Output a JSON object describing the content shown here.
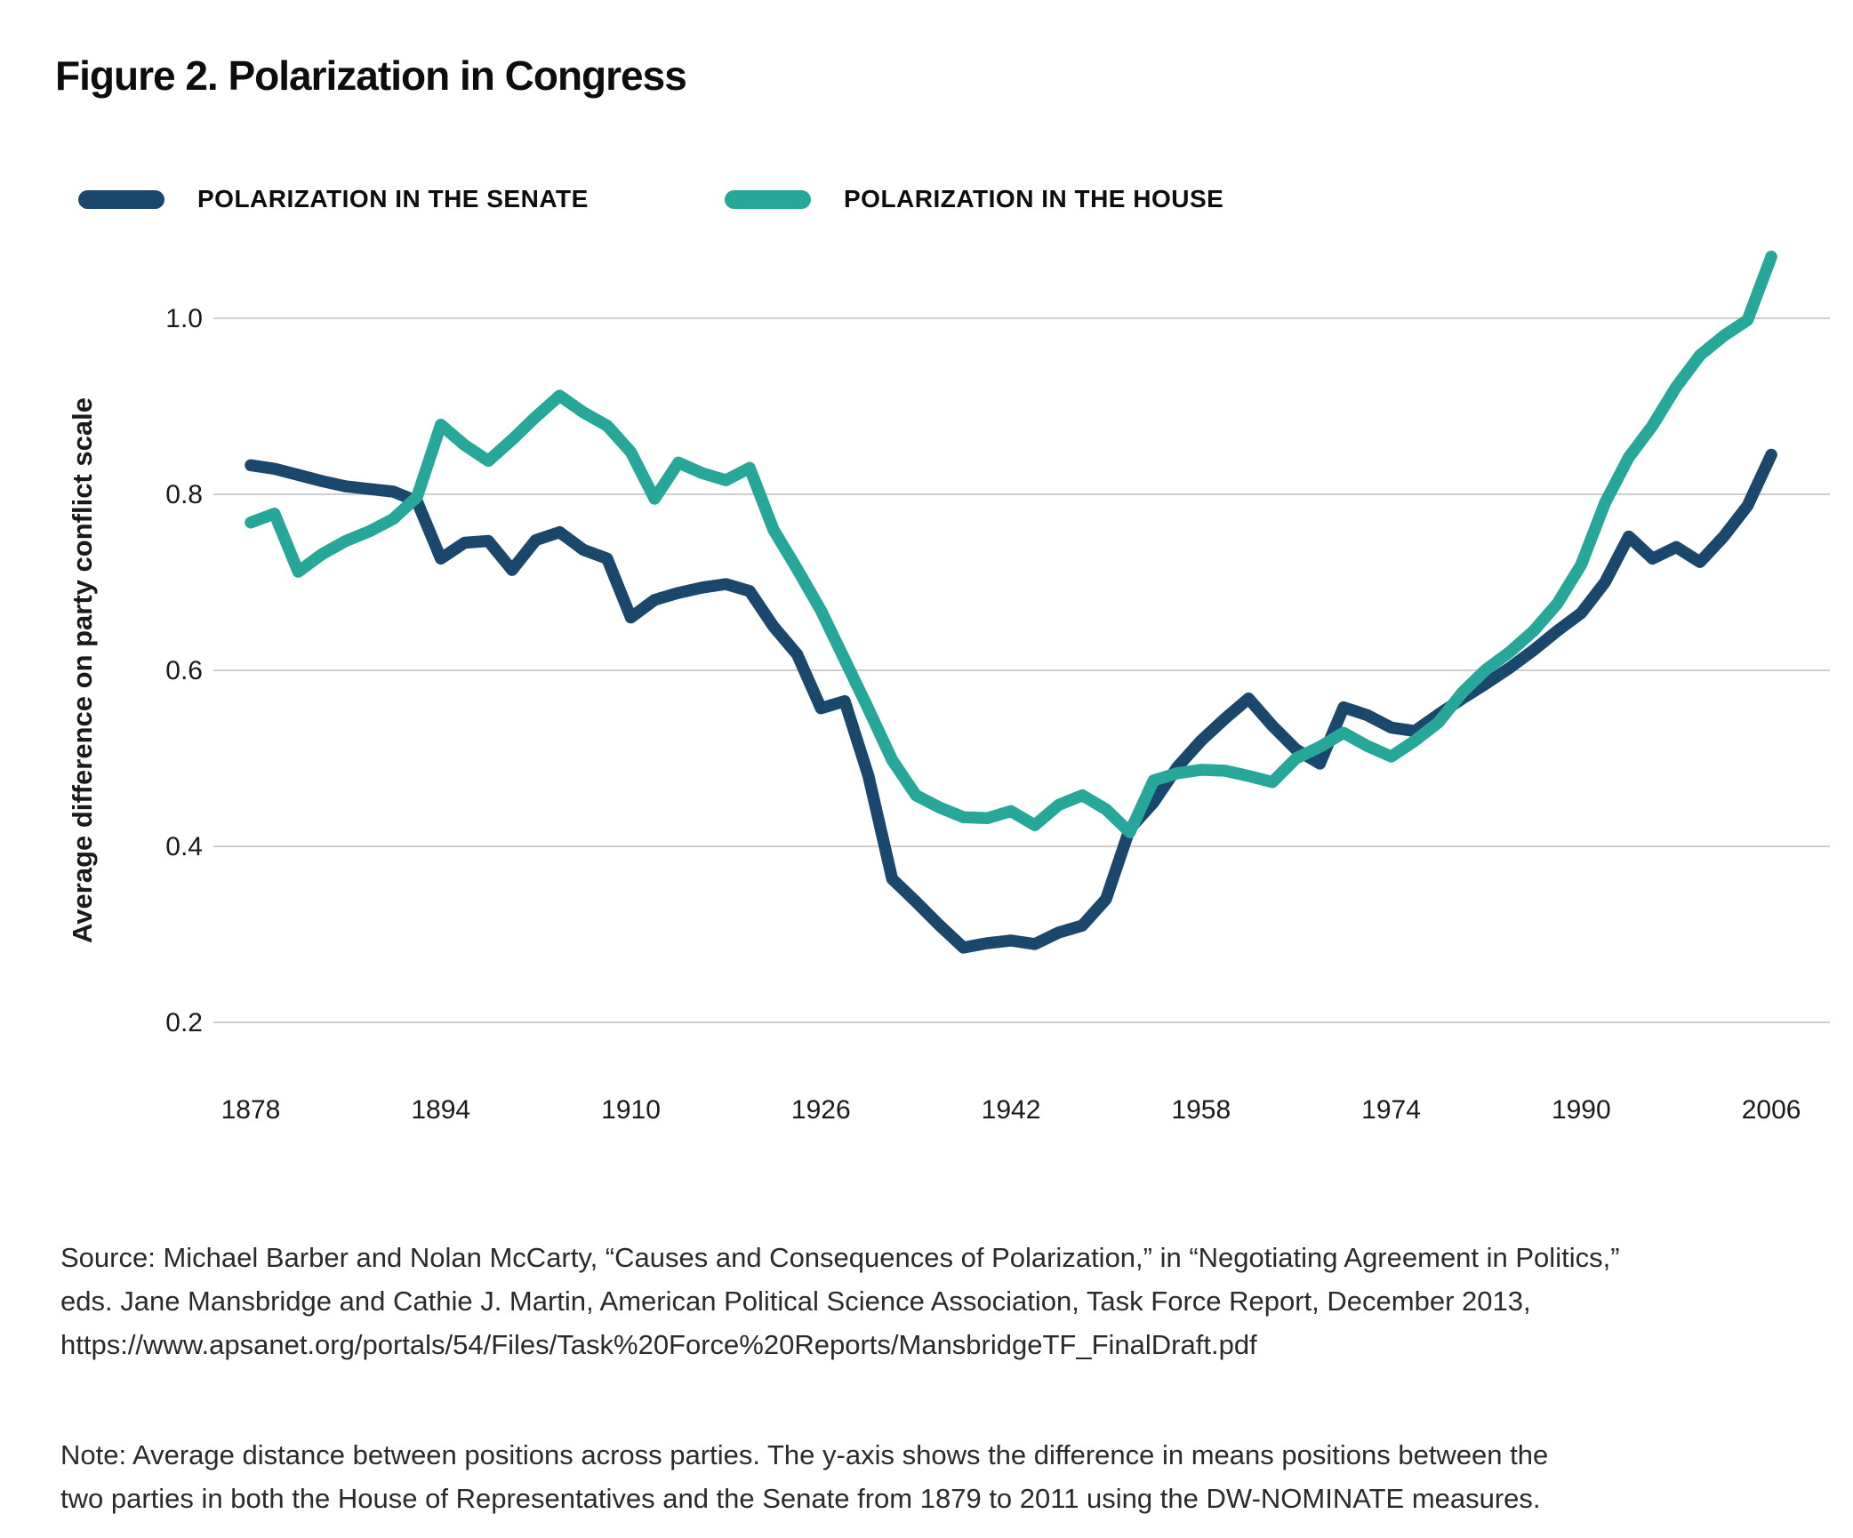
{
  "title": "Figure 2. Polarization in Congress",
  "legend": [
    {
      "id": "senate",
      "label": "POLARIZATION IN THE SENATE",
      "color": "#1A486C"
    },
    {
      "id": "house",
      "label": "POLARIZATION IN THE HOUSE",
      "color": "#27A79A"
    }
  ],
  "chart_data": {
    "type": "line",
    "title": "Figure 2. Polarization in Congress",
    "xlabel": "",
    "ylabel": "Average difference on party conflict scale",
    "ylim": [
      0.2,
      1.1
    ],
    "grid": "horizontal",
    "legend_position": "top",
    "yticks": [
      1.0,
      0.8,
      0.6,
      0.4,
      0.2
    ],
    "ytick_labels": [
      "1.0",
      "0.8",
      "0.6",
      "0.4",
      "0.2"
    ],
    "xticks": [
      {
        "label": "1878",
        "slot": 0
      },
      {
        "label": "1894",
        "slot": 8
      },
      {
        "label": "1910",
        "slot": 16
      },
      {
        "label": "1926",
        "slot": 24
      },
      {
        "label": "1942",
        "slot": 32
      },
      {
        "label": "1958",
        "slot": 40
      },
      {
        "label": "1974",
        "slot": 48
      },
      {
        "label": "1990",
        "slot": 56
      },
      {
        "label": "2006",
        "slot": 64
      }
    ],
    "x": [
      1879,
      1881,
      1883,
      1885,
      1887,
      1889,
      1891,
      1893,
      1895,
      1897,
      1899,
      1901,
      1903,
      1905,
      1907,
      1909,
      1911,
      1913,
      1915,
      1917,
      1919,
      1921,
      1923,
      1925,
      1927,
      1929,
      1931,
      1933,
      1935,
      1937,
      1939,
      1941,
      1943,
      1945,
      1947,
      1949,
      1951,
      1953,
      1955,
      1957,
      1959,
      1961,
      1963,
      1965,
      1967,
      1969,
      1971,
      1973,
      1975,
      1977,
      1979,
      1981,
      1983,
      1985,
      1987,
      1989,
      1991,
      1993,
      1995,
      1997,
      1999,
      2001,
      2003,
      2005,
      2007
    ],
    "series": [
      {
        "id": "senate-line",
        "name": "Polarization in the Senate",
        "color": "#1A486C",
        "values": [
          0.833,
          0.829,
          0.822,
          0.815,
          0.809,
          0.806,
          0.803,
          0.792,
          0.727,
          0.745,
          0.747,
          0.714,
          0.748,
          0.757,
          0.737,
          0.727,
          0.66,
          0.68,
          0.688,
          0.694,
          0.698,
          0.69,
          0.65,
          0.618,
          0.557,
          0.565,
          0.48,
          0.363,
          0.337,
          0.31,
          0.285,
          0.29,
          0.293,
          0.289,
          0.302,
          0.31,
          0.34,
          0.42,
          0.45,
          0.49,
          0.52,
          0.545,
          0.568,
          0.537,
          0.51,
          0.494,
          0.558,
          0.549,
          0.535,
          0.531,
          0.55,
          0.568,
          0.585,
          0.603,
          0.623,
          0.645,
          0.665,
          0.7,
          0.752,
          0.727,
          0.74,
          0.723,
          0.752,
          0.787,
          0.845
        ]
      },
      {
        "id": "house-line",
        "name": "Polarization in the House",
        "color": "#27A79A",
        "values": [
          0.768,
          0.778,
          0.712,
          0.732,
          0.747,
          0.758,
          0.772,
          0.797,
          0.879,
          0.856,
          0.838,
          0.862,
          0.888,
          0.912,
          0.893,
          0.878,
          0.848,
          0.795,
          0.836,
          0.824,
          0.816,
          0.83,
          0.76,
          0.715,
          0.668,
          0.612,
          0.556,
          0.498,
          0.458,
          0.444,
          0.433,
          0.432,
          0.44,
          0.424,
          0.447,
          0.458,
          0.442,
          0.416,
          0.475,
          0.483,
          0.487,
          0.486,
          0.48,
          0.473,
          0.5,
          0.513,
          0.529,
          0.514,
          0.502,
          0.52,
          0.541,
          0.575,
          0.601,
          0.621,
          0.645,
          0.676,
          0.72,
          0.79,
          0.842,
          0.878,
          0.922,
          0.958,
          0.98,
          0.998,
          1.07
        ]
      }
    ]
  },
  "source": {
    "lines": [
      "Source: Michael Barber and Nolan McCarty, “Causes and Consequences of Polarization,” in “Negotiating Agreement in Politics,”",
      "eds. Jane Mansbridge and Cathie J. Martin, American Political Science Association, Task Force Report, December 2013,",
      "https://www.apsanet.org/portals/54/Files/Task%20Force%20Reports/MansbridgeTF_FinalDraft.pdf"
    ]
  },
  "note": {
    "lines": [
      "Note: Average distance between positions across parties. The y-axis shows the difference in means positions between the",
      "two parties in both the House of Representatives and the Senate from 1879 to 2011 using the DW-NOMINATE measures."
    ]
  }
}
